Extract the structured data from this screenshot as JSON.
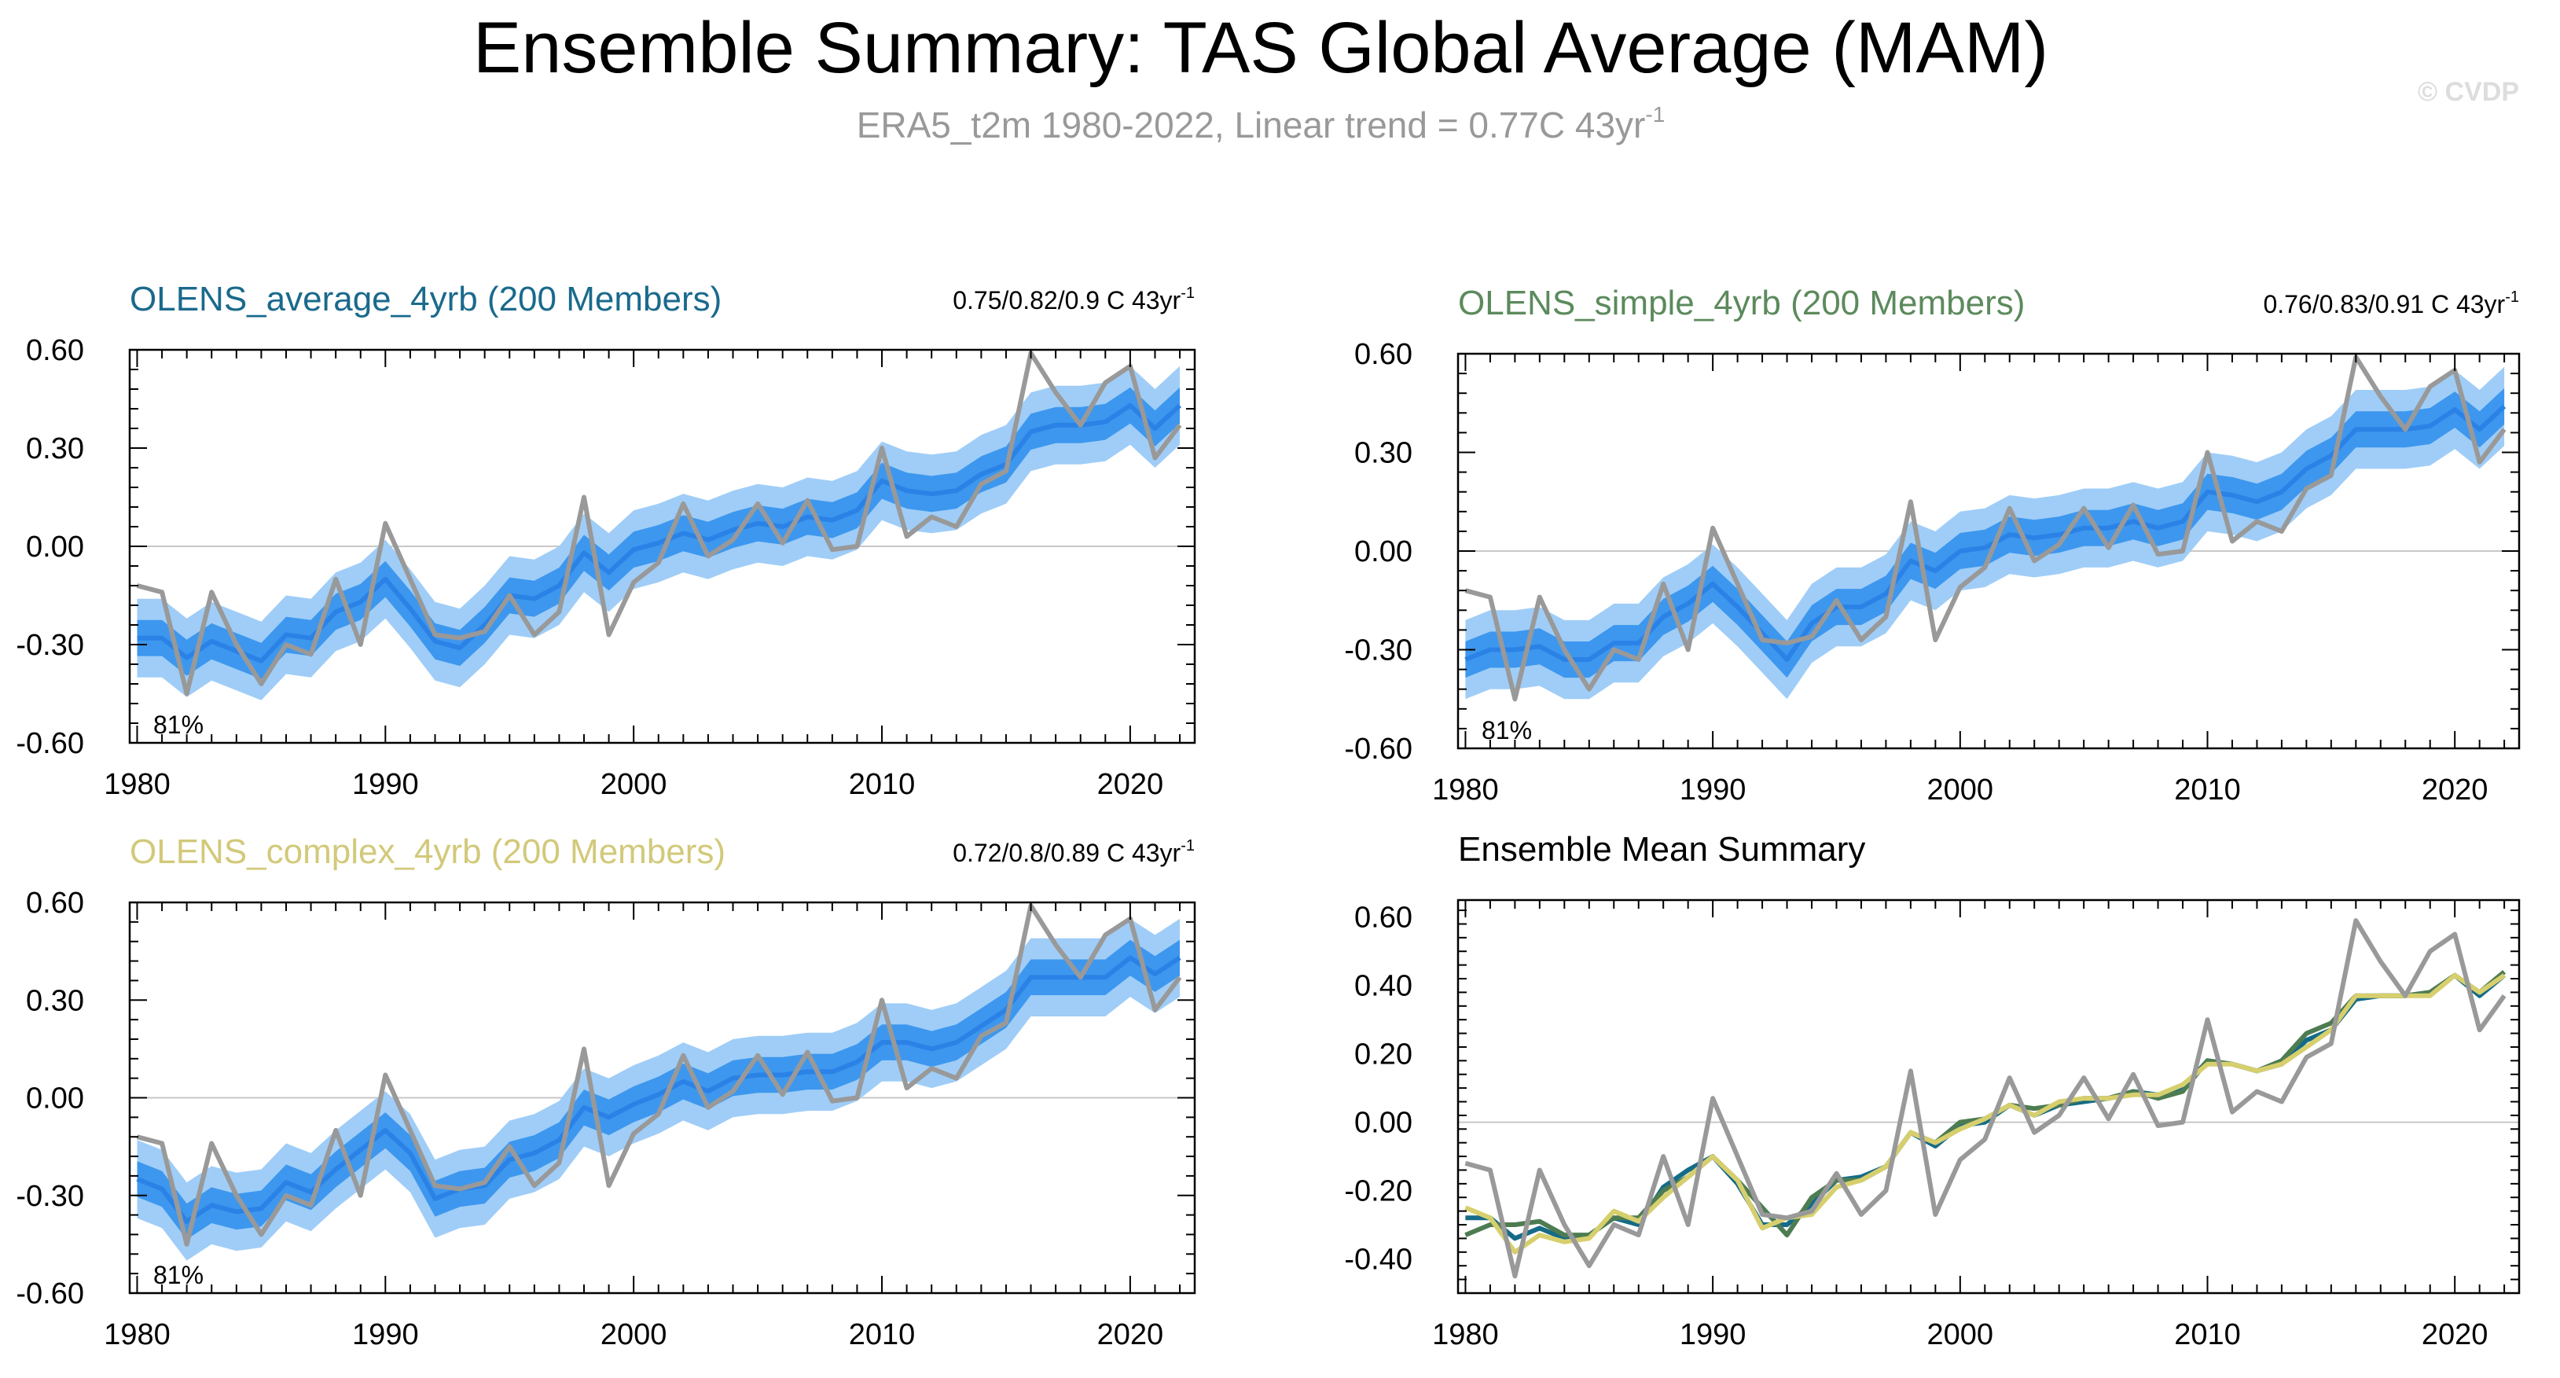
{
  "figure": {
    "title": "Ensemble Summary: TAS Global Average (MAM)",
    "subtitle_main": "ERA5_t2m 1980-2022, Linear trend = 0.77C 43yr",
    "subtitle_sup": "-1",
    "watermark": "© CVDP"
  },
  "colors": {
    "band_outer": "#9fcdf7",
    "band_inner": "#3d97ee",
    "ens_mean": "#2b82e6",
    "obs": "#999999",
    "zero_line": "#c8c8c8",
    "title_gray": "#999999",
    "average_title": "#1a6a8c",
    "simple_title": "#5c8a5c",
    "complex_title": "#d2c97a",
    "average_line": "#156b87",
    "simple_line": "#4e7c52",
    "complex_line": "#d7cf6e"
  },
  "chart_data": [
    {
      "type": "area",
      "title": "OLENS_average_4yrb (200 Members)",
      "trend_text": "0.75/0.82/0.9 C 43yr",
      "trend_sup": "-1",
      "percent_label": "81%",
      "ylim": [
        -0.6,
        0.6
      ],
      "yticks": [
        "0.60",
        "0.30",
        "0.00",
        "-0.30",
        "-0.60"
      ],
      "xticks": [
        "1980",
        "1990",
        "2000",
        "2010",
        "2020"
      ],
      "x": [
        1980,
        1981,
        1982,
        1983,
        1984,
        1985,
        1986,
        1987,
        1988,
        1989,
        1990,
        1991,
        1992,
        1993,
        1994,
        1995,
        1996,
        1997,
        1998,
        1999,
        2000,
        2001,
        2002,
        2003,
        2004,
        2005,
        2006,
        2007,
        2008,
        2009,
        2010,
        2011,
        2012,
        2013,
        2014,
        2015,
        2016,
        2017,
        2018,
        2019,
        2020,
        2021,
        2022
      ],
      "mean": [
        -0.28,
        -0.28,
        -0.34,
        -0.29,
        -0.32,
        -0.35,
        -0.27,
        -0.28,
        -0.2,
        -0.17,
        -0.1,
        -0.19,
        -0.29,
        -0.31,
        -0.24,
        -0.15,
        -0.16,
        -0.12,
        -0.02,
        -0.08,
        -0.01,
        0.01,
        0.04,
        0.02,
        0.05,
        0.07,
        0.06,
        0.09,
        0.08,
        0.11,
        0.2,
        0.17,
        0.16,
        0.17,
        0.22,
        0.25,
        0.35,
        0.37,
        0.37,
        0.38,
        0.43,
        0.36,
        0.43
      ],
      "inner_half": 0.055,
      "outer_half": 0.12,
      "obs_name": "ERA5_t2m",
      "obs": [
        -0.12,
        -0.14,
        -0.45,
        -0.14,
        -0.3,
        -0.42,
        -0.3,
        -0.33,
        -0.1,
        -0.3,
        0.07,
        -0.1,
        -0.27,
        -0.28,
        -0.26,
        -0.15,
        -0.27,
        -0.2,
        0.15,
        -0.27,
        -0.11,
        -0.05,
        0.13,
        -0.03,
        0.02,
        0.13,
        0.01,
        0.14,
        -0.01,
        0.0,
        0.3,
        0.03,
        0.09,
        0.06,
        0.19,
        0.23,
        0.59,
        0.47,
        0.37,
        0.5,
        0.55,
        0.27,
        0.37
      ]
    },
    {
      "type": "area",
      "title": "OLENS_simple_4yrb (200 Members)",
      "trend_text": "0.76/0.83/0.91 C 43yr",
      "trend_sup": "-1",
      "percent_label": "81%",
      "ylim": [
        -0.6,
        0.6
      ],
      "yticks": [
        "0.60",
        "0.30",
        "0.00",
        "-0.30",
        "-0.60"
      ],
      "xticks": [
        "1980",
        "1990",
        "2000",
        "2010",
        "2020"
      ],
      "x": [
        1980,
        1981,
        1982,
        1983,
        1984,
        1985,
        1986,
        1987,
        1988,
        1989,
        1990,
        1991,
        1992,
        1993,
        1994,
        1995,
        1996,
        1997,
        1998,
        1999,
        2000,
        2001,
        2002,
        2003,
        2004,
        2005,
        2006,
        2007,
        2008,
        2009,
        2010,
        2011,
        2012,
        2013,
        2014,
        2015,
        2016,
        2017,
        2018,
        2019,
        2020,
        2021,
        2022
      ],
      "mean": [
        -0.33,
        -0.3,
        -0.3,
        -0.29,
        -0.33,
        -0.33,
        -0.28,
        -0.28,
        -0.2,
        -0.16,
        -0.1,
        -0.17,
        -0.25,
        -0.33,
        -0.22,
        -0.17,
        -0.17,
        -0.13,
        -0.03,
        -0.06,
        0.0,
        0.01,
        0.05,
        0.04,
        0.05,
        0.07,
        0.07,
        0.09,
        0.07,
        0.09,
        0.18,
        0.17,
        0.15,
        0.18,
        0.25,
        0.29,
        0.37,
        0.37,
        0.37,
        0.38,
        0.43,
        0.37,
        0.44
      ],
      "inner_half": 0.055,
      "outer_half": 0.12,
      "obs_name": "ERA5_t2m",
      "obs": [
        -0.12,
        -0.14,
        -0.45,
        -0.14,
        -0.3,
        -0.42,
        -0.3,
        -0.33,
        -0.1,
        -0.3,
        0.07,
        -0.1,
        -0.27,
        -0.28,
        -0.26,
        -0.15,
        -0.27,
        -0.2,
        0.15,
        -0.27,
        -0.11,
        -0.05,
        0.13,
        -0.03,
        0.02,
        0.13,
        0.01,
        0.14,
        -0.01,
        0.0,
        0.3,
        0.03,
        0.09,
        0.06,
        0.19,
        0.23,
        0.59,
        0.47,
        0.37,
        0.5,
        0.55,
        0.27,
        0.37
      ]
    },
    {
      "type": "area",
      "title": "OLENS_complex_4yrb (200 Members)",
      "trend_text": "0.72/0.8/0.89 C 43yr",
      "trend_sup": "-1",
      "percent_label": "81%",
      "ylim": [
        -0.6,
        0.6
      ],
      "yticks": [
        "0.60",
        "0.30",
        "0.00",
        "-0.30",
        "-0.60"
      ],
      "xticks": [
        "1980",
        "1990",
        "2000",
        "2010",
        "2020"
      ],
      "x": [
        1980,
        1981,
        1982,
        1983,
        1984,
        1985,
        1986,
        1987,
        1988,
        1989,
        1990,
        1991,
        1992,
        1993,
        1994,
        1995,
        1996,
        1997,
        1998,
        1999,
        2000,
        2001,
        2002,
        2003,
        2004,
        2005,
        2006,
        2007,
        2008,
        2009,
        2010,
        2011,
        2012,
        2013,
        2014,
        2015,
        2016,
        2017,
        2018,
        2019,
        2020,
        2021,
        2022
      ],
      "mean": [
        -0.25,
        -0.28,
        -0.38,
        -0.33,
        -0.35,
        -0.34,
        -0.26,
        -0.29,
        -0.22,
        -0.16,
        -0.1,
        -0.17,
        -0.31,
        -0.28,
        -0.27,
        -0.19,
        -0.17,
        -0.13,
        -0.03,
        -0.06,
        -0.02,
        0.01,
        0.05,
        0.02,
        0.06,
        0.07,
        0.07,
        0.08,
        0.08,
        0.11,
        0.17,
        0.17,
        0.15,
        0.17,
        0.22,
        0.27,
        0.37,
        0.37,
        0.37,
        0.37,
        0.43,
        0.38,
        0.43
      ],
      "inner_half": 0.055,
      "outer_half": 0.12,
      "obs_name": "ERA5_t2m",
      "obs": [
        -0.12,
        -0.14,
        -0.45,
        -0.14,
        -0.3,
        -0.42,
        -0.3,
        -0.33,
        -0.1,
        -0.3,
        0.07,
        -0.1,
        -0.27,
        -0.28,
        -0.26,
        -0.15,
        -0.27,
        -0.2,
        0.15,
        -0.27,
        -0.11,
        -0.05,
        0.13,
        -0.03,
        0.02,
        0.13,
        0.01,
        0.14,
        -0.01,
        0.0,
        0.3,
        0.03,
        0.09,
        0.06,
        0.19,
        0.23,
        0.59,
        0.47,
        0.37,
        0.5,
        0.55,
        0.27,
        0.37
      ]
    },
    {
      "type": "line",
      "title": "Ensemble Mean Summary",
      "ylim": [
        -0.5,
        0.65
      ],
      "yticks": [
        "0.60",
        "0.40",
        "0.20",
        "0.00",
        "-0.20",
        "-0.40"
      ],
      "xticks": [
        "1980",
        "1990",
        "2000",
        "2010",
        "2020"
      ],
      "x": [
        1980,
        1981,
        1982,
        1983,
        1984,
        1985,
        1986,
        1987,
        1988,
        1989,
        1990,
        1991,
        1992,
        1993,
        1994,
        1995,
        1996,
        1997,
        1998,
        1999,
        2000,
        2001,
        2002,
        2003,
        2004,
        2005,
        2006,
        2007,
        2008,
        2009,
        2010,
        2011,
        2012,
        2013,
        2014,
        2015,
        2016,
        2017,
        2018,
        2019,
        2020,
        2021,
        2022
      ],
      "series": [
        {
          "key": "average",
          "values": [
            -0.28,
            -0.28,
            -0.34,
            -0.31,
            -0.34,
            -0.33,
            -0.28,
            -0.3,
            -0.19,
            -0.14,
            -0.1,
            -0.18,
            -0.3,
            -0.3,
            -0.24,
            -0.17,
            -0.16,
            -0.13,
            -0.03,
            -0.07,
            -0.01,
            0.0,
            0.05,
            0.02,
            0.05,
            0.06,
            0.07,
            0.09,
            0.08,
            0.1,
            0.18,
            0.17,
            0.15,
            0.17,
            0.24,
            0.27,
            0.36,
            0.37,
            0.37,
            0.38,
            0.43,
            0.37,
            0.43
          ]
        },
        {
          "key": "simple",
          "values": [
            -0.33,
            -0.3,
            -0.3,
            -0.29,
            -0.33,
            -0.33,
            -0.28,
            -0.28,
            -0.2,
            -0.16,
            -0.1,
            -0.17,
            -0.25,
            -0.33,
            -0.22,
            -0.17,
            -0.17,
            -0.13,
            -0.03,
            -0.06,
            0.0,
            0.01,
            0.05,
            0.04,
            0.05,
            0.07,
            0.07,
            0.09,
            0.07,
            0.09,
            0.18,
            0.17,
            0.15,
            0.18,
            0.26,
            0.29,
            0.37,
            0.37,
            0.37,
            0.38,
            0.43,
            0.38,
            0.44
          ]
        },
        {
          "key": "complex",
          "values": [
            -0.25,
            -0.28,
            -0.38,
            -0.33,
            -0.35,
            -0.34,
            -0.26,
            -0.29,
            -0.22,
            -0.16,
            -0.1,
            -0.17,
            -0.31,
            -0.28,
            -0.27,
            -0.19,
            -0.17,
            -0.13,
            -0.03,
            -0.06,
            -0.02,
            0.01,
            0.05,
            0.02,
            0.06,
            0.07,
            0.07,
            0.08,
            0.08,
            0.11,
            0.17,
            0.17,
            0.15,
            0.17,
            0.22,
            0.27,
            0.37,
            0.37,
            0.37,
            0.37,
            0.43,
            0.38,
            0.43
          ]
        },
        {
          "key": "obs",
          "values": [
            -0.12,
            -0.14,
            -0.45,
            -0.14,
            -0.3,
            -0.42,
            -0.3,
            -0.33,
            -0.1,
            -0.3,
            0.07,
            -0.1,
            -0.27,
            -0.28,
            -0.26,
            -0.15,
            -0.27,
            -0.2,
            0.15,
            -0.27,
            -0.11,
            -0.05,
            0.13,
            -0.03,
            0.02,
            0.13,
            0.01,
            0.14,
            -0.01,
            0.0,
            0.3,
            0.03,
            0.09,
            0.06,
            0.19,
            0.23,
            0.59,
            0.47,
            0.37,
            0.5,
            0.55,
            0.27,
            0.37
          ]
        }
      ]
    }
  ]
}
